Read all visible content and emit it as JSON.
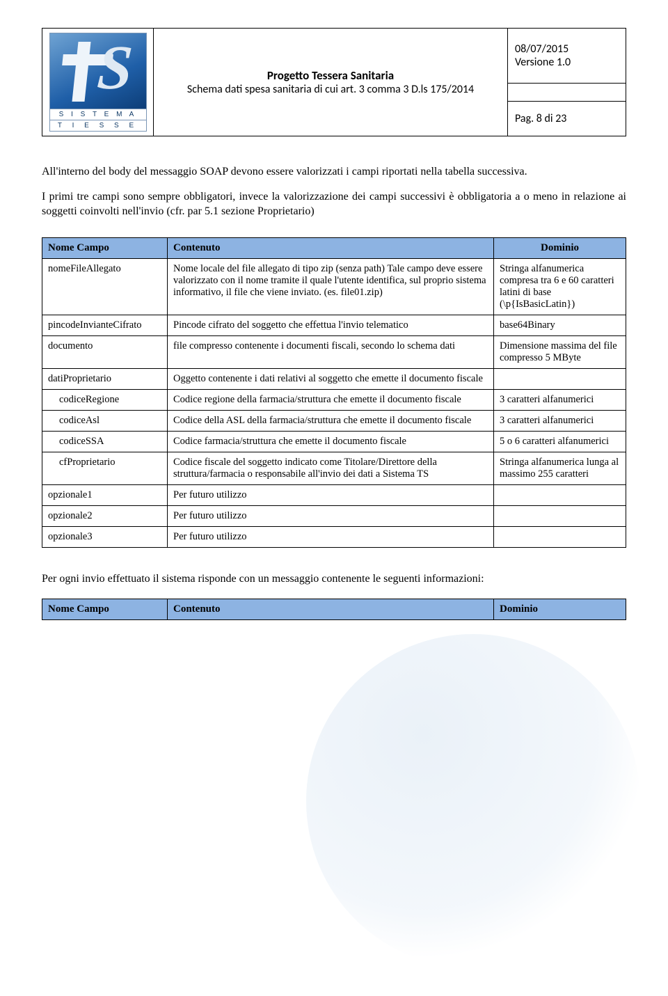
{
  "header": {
    "title": "Progetto Tessera Sanitaria",
    "subtitle": "Schema dati spesa sanitaria di cui art. 3 comma 3 D.ls 175/2014",
    "date": "08/07/2015",
    "version": "Versione 1.0",
    "page": "Pag. 8 di 23",
    "logo_line1": "S I S T E M A",
    "logo_line2": "T I E S S E"
  },
  "paragraphs": {
    "p1": "All'interno del body del messaggio SOAP devono essere valorizzati i campi riportati nella tabella successiva.",
    "p2": "I primi tre campi sono sempre obbligatori, invece la valorizzazione dei campi successivi è obbligatoria a o meno in relazione ai soggetti coinvolti nell'invio (cfr. par 5.1 sezione Proprietario)",
    "p3": "Per ogni invio effettuato il sistema risponde con un messaggio contenente le seguenti informazioni:"
  },
  "table": {
    "columns": {
      "name": "Nome Campo",
      "content": "Contenuto",
      "domain": "Dominio"
    },
    "rows": [
      {
        "name": "nomeFileAllegato",
        "content": "Nome locale del file allegato di tipo zip (senza path) Tale campo deve essere valorizzato con il nome tramite il quale l'utente identifica, sul proprio sistema informativo, il file che viene inviato. (es. file01.zip)",
        "domain": "Stringa alfanumerica compresa tra 6 e 60 caratteri latini di base (\\p{IsBasicLatin})",
        "indent": false
      },
      {
        "name": "pincodeInvianteCifrato",
        "content": "Pincode cifrato del soggetto che effettua l'invio telematico",
        "domain": "base64Binary",
        "indent": false
      },
      {
        "name": "documento",
        "content": "file compresso contenente i documenti fiscali, secondo lo schema dati",
        "domain": "Dimensione massima del file compresso 5 MByte",
        "indent": false
      },
      {
        "name": "datiProprietario",
        "content": "Oggetto contenente i dati relativi al soggetto che emette il documento fiscale",
        "domain": "",
        "indent": false
      },
      {
        "name": "codiceRegione",
        "content": "Codice regione della farmacia/struttura che emette il documento fiscale",
        "domain": "3 caratteri alfanumerici",
        "indent": true
      },
      {
        "name": "codiceAsl",
        "content": "Codice della ASL della farmacia/struttura che emette il documento fiscale",
        "domain": "3 caratteri alfanumerici",
        "indent": true
      },
      {
        "name": "codiceSSA",
        "content": "Codice farmacia/struttura che emette il documento fiscale",
        "domain": "5 o 6 caratteri alfanumerici",
        "indent": true
      },
      {
        "name": "cfProprietario",
        "content": "Codice fiscale del soggetto indicato come Titolare/Direttore della struttura/farmacia o responsabile all'invio dei dati a Sistema TS",
        "domain": "Stringa alfanumerica lunga al massimo 255 caratteri",
        "indent": true
      },
      {
        "name": "opzionale1",
        "content": "Per futuro utilizzo",
        "domain": "",
        "indent": false
      },
      {
        "name": "opzionale2",
        "content": "Per futuro utilizzo",
        "domain": "",
        "indent": false
      },
      {
        "name": "opzionale3",
        "content": "Per futuro utilizzo",
        "domain": "",
        "indent": false
      }
    ]
  },
  "colors": {
    "header_row_bg": "#8db3e2",
    "border": "#000000",
    "page_bg": "#ffffff"
  }
}
